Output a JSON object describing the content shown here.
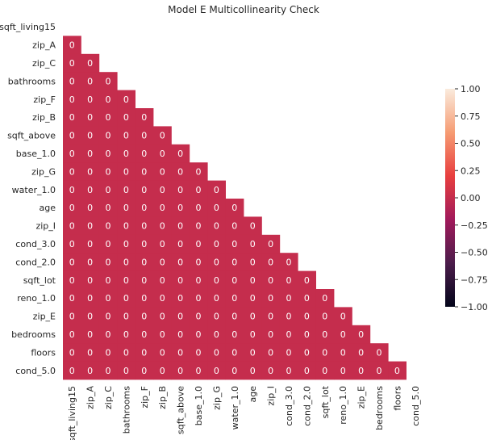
{
  "chart_data": {
    "type": "heatmap",
    "title": "Model E Multicollinearity Check",
    "variables": [
      "sqft_living15",
      "zip_A",
      "zip_C",
      "bathrooms",
      "zip_F",
      "zip_B",
      "sqft_above",
      "base_1.0",
      "zip_G",
      "water_1.0",
      "age",
      "zip_I",
      "cond_3.0",
      "cond_2.0",
      "sqft_lot",
      "reno_1.0",
      "zip_E",
      "bedrooms",
      "floors",
      "cond_5.0"
    ],
    "mask": "upper-triangle-including-diagonal",
    "cell_value": 0,
    "cell_label": "0",
    "colorbar": {
      "min": -1.0,
      "max": 1.0,
      "ticks": [
        "1.00",
        "0.75",
        "0.50",
        "0.25",
        "0.00",
        "−0.25",
        "−0.50",
        "−0.75",
        "−1.00"
      ],
      "tick_values": [
        1.0,
        0.75,
        0.5,
        0.25,
        0.0,
        -0.25,
        -0.5,
        -0.75,
        -1.0
      ],
      "colors": [
        "#03051a",
        "#4c1d4b",
        "#a11a5b",
        "#e83f3f",
        "#f69c73",
        "#faebdd"
      ]
    },
    "grid": false
  }
}
